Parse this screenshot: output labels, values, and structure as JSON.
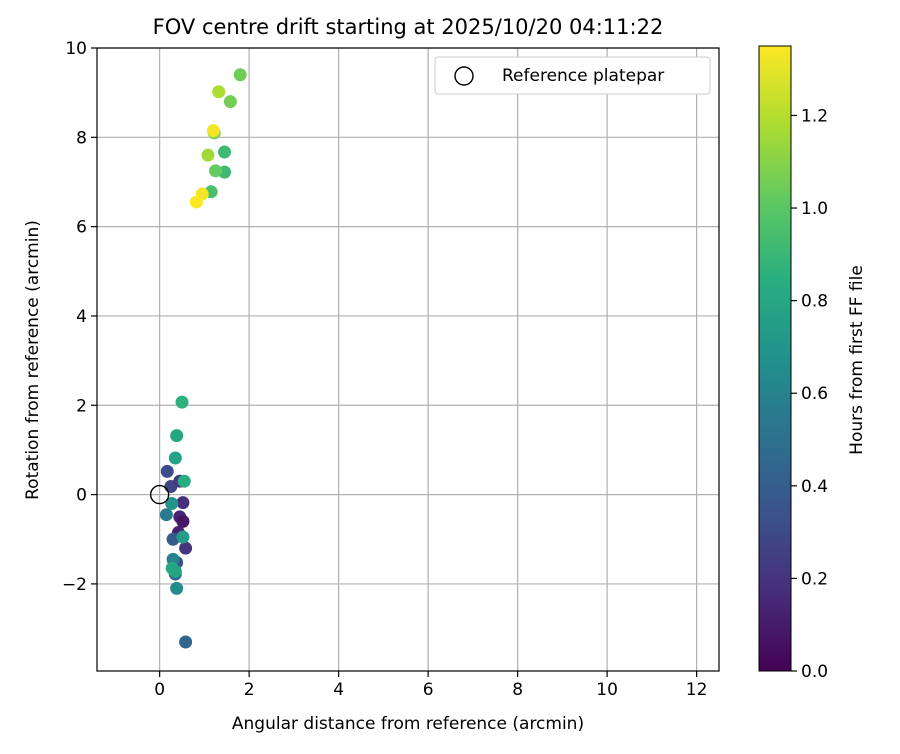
{
  "chart_data": {
    "type": "scatter",
    "title": "FOV centre drift starting at 2025/10/20 04:11:22",
    "xlabel": "Angular distance from reference (arcmin)",
    "ylabel": "Rotation from reference (arcmin)",
    "xlim": [
      -1.4,
      12.5
    ],
    "ylim": [
      -3.95,
      10.0
    ],
    "xticks": [
      0,
      2,
      4,
      6,
      8,
      10,
      12
    ],
    "yticks": [
      -2,
      0,
      2,
      4,
      6,
      8,
      10
    ],
    "grid": true,
    "legend": {
      "position": "top-right",
      "entries": [
        "Reference platepar"
      ]
    },
    "reference_point": {
      "x": 0,
      "y": 0,
      "label": "Reference platepar"
    },
    "colorbar": {
      "label": "Hours from first FF file",
      "colormap": "viridis",
      "range": [
        0,
        1.35
      ],
      "ticks": [
        "0.0",
        "0.2",
        "0.4",
        "0.6",
        "0.8",
        "1.0",
        "1.2"
      ],
      "tick_values": [
        0,
        0.2,
        0.4,
        0.6,
        0.8,
        1.0,
        1.2
      ]
    },
    "points": [
      {
        "x": 0.17,
        "y": 0.52,
        "h": 0.32
      },
      {
        "x": 0.25,
        "y": 0.18,
        "h": 0.28
      },
      {
        "x": 0.45,
        "y": 0.3,
        "h": 0.22
      },
      {
        "x": 0.52,
        "y": -0.18,
        "h": 0.18
      },
      {
        "x": 0.45,
        "y": -0.5,
        "h": 0.14
      },
      {
        "x": 0.52,
        "y": -0.6,
        "h": 0.08
      },
      {
        "x": 0.42,
        "y": -0.85,
        "h": 0.12
      },
      {
        "x": 0.58,
        "y": -1.2,
        "h": 0.2
      },
      {
        "x": 0.3,
        "y": -1.0,
        "h": 0.38
      },
      {
        "x": 0.38,
        "y": -1.52,
        "h": 0.35
      },
      {
        "x": 0.35,
        "y": -1.78,
        "h": 0.45
      },
      {
        "x": 0.15,
        "y": -0.45,
        "h": 0.55
      },
      {
        "x": 0.27,
        "y": -0.2,
        "h": 0.7
      },
      {
        "x": 0.3,
        "y": -1.45,
        "h": 0.6
      },
      {
        "x": 0.38,
        "y": -2.1,
        "h": 0.65
      },
      {
        "x": 0.58,
        "y": -3.3,
        "h": 0.45
      },
      {
        "x": 0.52,
        "y": -0.95,
        "h": 0.74
      },
      {
        "x": 0.28,
        "y": -1.65,
        "h": 0.8
      },
      {
        "x": 0.35,
        "y": -1.72,
        "h": 0.78
      },
      {
        "x": 0.35,
        "y": 0.82,
        "h": 0.78
      },
      {
        "x": 0.38,
        "y": 1.32,
        "h": 0.8
      },
      {
        "x": 0.55,
        "y": 0.3,
        "h": 0.84
      },
      {
        "x": 0.5,
        "y": 2.07,
        "h": 0.86
      },
      {
        "x": 1.8,
        "y": 9.4,
        "h": 1.05
      },
      {
        "x": 1.32,
        "y": 9.02,
        "h": 1.18
      },
      {
        "x": 1.58,
        "y": 8.8,
        "h": 1.06
      },
      {
        "x": 1.22,
        "y": 8.1,
        "h": 1.08
      },
      {
        "x": 1.45,
        "y": 7.67,
        "h": 0.92
      },
      {
        "x": 1.08,
        "y": 7.6,
        "h": 1.15
      },
      {
        "x": 1.45,
        "y": 7.22,
        "h": 0.92
      },
      {
        "x": 1.25,
        "y": 7.25,
        "h": 1.02
      },
      {
        "x": 1.15,
        "y": 6.78,
        "h": 0.95
      },
      {
        "x": 0.95,
        "y": 6.73,
        "h": 1.33
      },
      {
        "x": 0.82,
        "y": 6.55,
        "h": 1.35
      },
      {
        "x": 1.2,
        "y": 8.15,
        "h": 1.33
      }
    ]
  }
}
